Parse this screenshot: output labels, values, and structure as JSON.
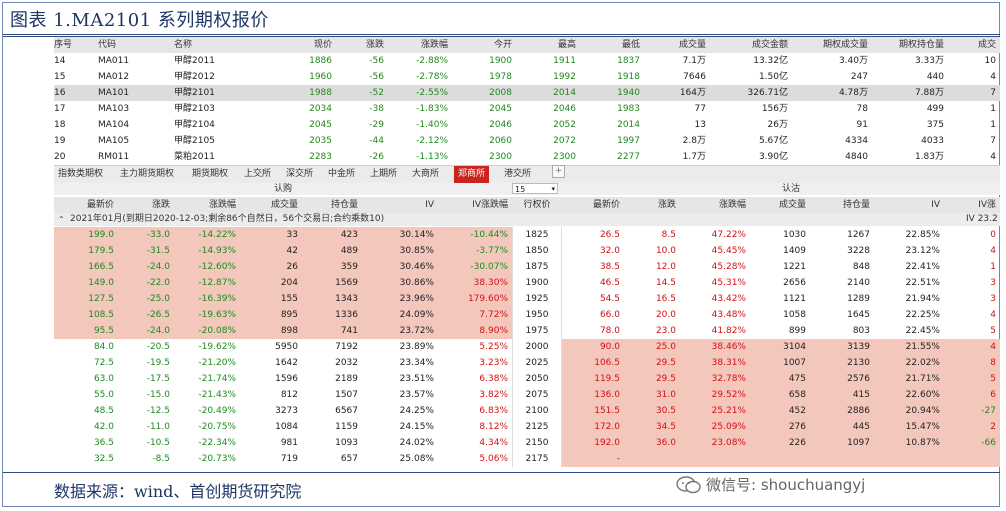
{
  "figure_title": "图表 1.MA2101 系列期权报价",
  "source": "数据来源：wind、首创期货研究院",
  "watermark": "微信号: shouchuangyj",
  "top_table": {
    "headers": [
      "序号",
      "代码",
      "名称",
      "现价",
      "涨跌",
      "涨跌幅",
      "今开",
      "最高",
      "最低",
      "成交量",
      "成交金额",
      "期权成交量",
      "期权持仓量",
      "成交"
    ],
    "rows": [
      [
        "14",
        "MA011",
        "甲醇2011",
        "1886",
        "-56",
        "-2.88%",
        "1900",
        "1911",
        "1837",
        "7.1万",
        "13.32亿",
        "3.40万",
        "3.33万",
        "10"
      ],
      [
        "15",
        "MA012",
        "甲醇2012",
        "1960",
        "-56",
        "-2.78%",
        "1978",
        "1992",
        "1918",
        "7646",
        "1.50亿",
        "247",
        "440",
        "4"
      ],
      [
        "16",
        "MA101",
        "甲醇2101",
        "1988",
        "-52",
        "-2.55%",
        "2008",
        "2014",
        "1940",
        "164万",
        "326.71亿",
        "4.78万",
        "7.88万",
        "7"
      ],
      [
        "17",
        "MA103",
        "甲醇2103",
        "2034",
        "-38",
        "-1.83%",
        "2045",
        "2046",
        "1983",
        "77",
        "156万",
        "78",
        "499",
        "1"
      ],
      [
        "18",
        "MA104",
        "甲醇2104",
        "2045",
        "-29",
        "-1.40%",
        "2046",
        "2052",
        "2014",
        "13",
        "26万",
        "91",
        "375",
        "1"
      ],
      [
        "19",
        "MA105",
        "甲醇2105",
        "2035",
        "-44",
        "-2.12%",
        "2060",
        "2072",
        "1997",
        "2.8万",
        "5.67亿",
        "4334",
        "4033",
        "7"
      ],
      [
        "20",
        "RM011",
        "菜粕2011",
        "2283",
        "-26",
        "-1.13%",
        "2300",
        "2300",
        "2277",
        "1.7万",
        "3.90亿",
        "4840",
        "1.83万",
        "4"
      ]
    ]
  },
  "tabs": [
    "指数类期权",
    "主力期货期权",
    "期货期权",
    "上交所",
    "深交所",
    "中金所",
    "上期所",
    "大商所",
    "郑商所",
    "港交所"
  ],
  "active_tab": "郑商所",
  "call_label": "认购",
  "put_label": "认沽",
  "strike_select": "15",
  "option_headers": {
    "call": [
      "最新价",
      "涨跌",
      "涨跌幅",
      "成交量",
      "持仓量",
      "IV",
      "IV涨跌幅"
    ],
    "strike": "行权价",
    "put": [
      "最新价",
      "涨跌",
      "涨跌幅",
      "成交量",
      "持仓量",
      "IV",
      "IV涨"
    ]
  },
  "expiry_label": "2021年01月(到期日2020-12-03;剩余86个自然日，56个交易日;合约乘数10)",
  "expiry_right": "IV 23.2",
  "options": [
    {
      "call": [
        "199.0",
        "-33.0",
        "-14.22%",
        "33",
        "423",
        "30.14%",
        "-10.44%"
      ],
      "strike": "1825",
      "put": [
        "26.5",
        "8.5",
        "47.22%",
        "1030",
        "1267",
        "22.85%",
        "0"
      ],
      "call_itm": true,
      "put_itm": false
    },
    {
      "call": [
        "179.5",
        "-31.5",
        "-14.93%",
        "42",
        "489",
        "30.85%",
        "-3.77%"
      ],
      "strike": "1850",
      "put": [
        "32.0",
        "10.0",
        "45.45%",
        "1409",
        "3228",
        "23.12%",
        "4"
      ],
      "call_itm": true,
      "put_itm": false
    },
    {
      "call": [
        "166.5",
        "-24.0",
        "-12.60%",
        "26",
        "359",
        "30.46%",
        "-30.07%"
      ],
      "strike": "1875",
      "put": [
        "38.5",
        "12.0",
        "45.28%",
        "1221",
        "848",
        "22.41%",
        "1"
      ],
      "call_itm": true,
      "put_itm": false
    },
    {
      "call": [
        "149.0",
        "-22.0",
        "-12.87%",
        "204",
        "1569",
        "30.86%",
        "38.30%"
      ],
      "strike": "1900",
      "put": [
        "46.5",
        "14.5",
        "45.31%",
        "2656",
        "2140",
        "22.51%",
        "3"
      ],
      "call_itm": true,
      "put_itm": false
    },
    {
      "call": [
        "127.5",
        "-25.0",
        "-16.39%",
        "155",
        "1343",
        "23.96%",
        "179.60%"
      ],
      "strike": "1925",
      "put": [
        "54.5",
        "16.5",
        "43.42%",
        "1121",
        "1289",
        "21.94%",
        "3"
      ],
      "call_itm": true,
      "put_itm": false
    },
    {
      "call": [
        "108.5",
        "-26.5",
        "-19.63%",
        "895",
        "1336",
        "24.09%",
        "7.72%"
      ],
      "strike": "1950",
      "put": [
        "66.0",
        "20.0",
        "43.48%",
        "1058",
        "1645",
        "22.25%",
        "4"
      ],
      "call_itm": true,
      "put_itm": false
    },
    {
      "call": [
        "95.5",
        "-24.0",
        "-20.08%",
        "898",
        "741",
        "23.72%",
        "8.90%"
      ],
      "strike": "1975",
      "put": [
        "78.0",
        "23.0",
        "41.82%",
        "899",
        "803",
        "22.45%",
        "5"
      ],
      "call_itm": true,
      "put_itm": false
    },
    {
      "call": [
        "84.0",
        "-20.5",
        "-19.62%",
        "5950",
        "7192",
        "23.89%",
        "5.25%"
      ],
      "strike": "2000",
      "put": [
        "90.0",
        "25.0",
        "38.46%",
        "3104",
        "3139",
        "21.55%",
        "4"
      ],
      "call_itm": false,
      "put_itm": true
    },
    {
      "call": [
        "72.5",
        "-19.5",
        "-21.20%",
        "1642",
        "2032",
        "23.34%",
        "3.23%"
      ],
      "strike": "2025",
      "put": [
        "106.5",
        "29.5",
        "38.31%",
        "1007",
        "2130",
        "22.02%",
        "8"
      ],
      "call_itm": false,
      "put_itm": true
    },
    {
      "call": [
        "63.0",
        "-17.5",
        "-21.74%",
        "1596",
        "2189",
        "23.51%",
        "6.38%"
      ],
      "strike": "2050",
      "put": [
        "119.5",
        "29.5",
        "32.78%",
        "475",
        "2576",
        "21.71%",
        "5"
      ],
      "call_itm": false,
      "put_itm": true
    },
    {
      "call": [
        "55.0",
        "-15.0",
        "-21.43%",
        "812",
        "1507",
        "23.57%",
        "3.82%"
      ],
      "strike": "2075",
      "put": [
        "136.0",
        "31.0",
        "29.52%",
        "658",
        "415",
        "22.60%",
        "6"
      ],
      "call_itm": false,
      "put_itm": true
    },
    {
      "call": [
        "48.5",
        "-12.5",
        "-20.49%",
        "3273",
        "6567",
        "24.25%",
        "6.83%"
      ],
      "strike": "2100",
      "put": [
        "151.5",
        "30.5",
        "25.21%",
        "452",
        "2886",
        "20.94%",
        "-27"
      ],
      "call_itm": false,
      "put_itm": true
    },
    {
      "call": [
        "42.0",
        "-11.0",
        "-20.75%",
        "1084",
        "1159",
        "24.15%",
        "8.12%"
      ],
      "strike": "2125",
      "put": [
        "172.0",
        "34.5",
        "25.09%",
        "276",
        "445",
        "15.47%",
        "2"
      ],
      "call_itm": false,
      "put_itm": true
    },
    {
      "call": [
        "36.5",
        "-10.5",
        "-22.34%",
        "981",
        "1093",
        "24.02%",
        "4.34%"
      ],
      "strike": "2150",
      "put": [
        "192.0",
        "36.0",
        "23.08%",
        "226",
        "1097",
        "10.87%",
        "-66"
      ],
      "call_itm": false,
      "put_itm": true
    },
    {
      "call": [
        "32.5",
        "-8.5",
        "-20.73%",
        "719",
        "657",
        "25.08%",
        "5.06%"
      ],
      "strike": "2175",
      "put": [
        "-",
        "",
        "",
        "",
        "",
        "",
        ""
      ],
      "call_itm": false,
      "put_itm": true
    }
  ],
  "colors": {
    "accent_red": "#c9241d",
    "itm_fill": "#f4c7bd",
    "up": "#d11111",
    "down": "#1e8a1e"
  }
}
